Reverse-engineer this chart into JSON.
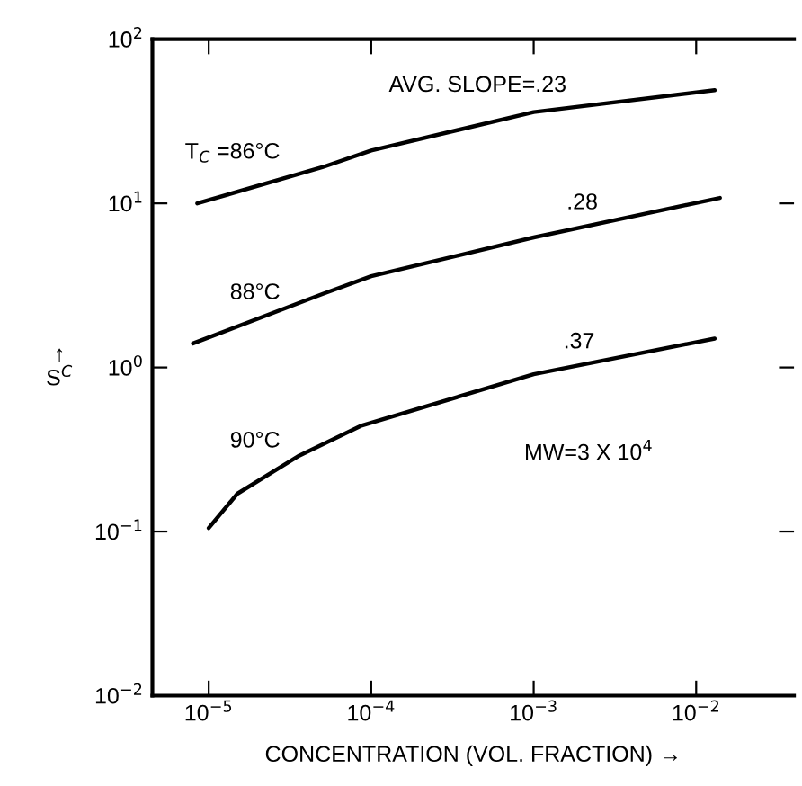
{
  "chart_data": {
    "type": "line",
    "xlabel": "CONCENTRATION (VOL. FRACTION) →",
    "ylabel": "↑\nS$^{C}$",
    "log": "xy",
    "grid": false,
    "marker": "none",
    "line_style": "solid",
    "xlim": [
      4.5e-06,
      0.04
    ],
    "ylim": [
      0.01,
      100
    ],
    "xticks": [
      {
        "value": 1e-05,
        "label": "10$^{−5}$"
      },
      {
        "value": 0.0001,
        "label": "10$^{−4}$"
      },
      {
        "value": 0.001,
        "label": "10$^{−3}$"
      },
      {
        "value": 0.01,
        "label": "10$^{−2}$"
      }
    ],
    "yticks": [
      {
        "value": 0.01,
        "label": "10$^{−2}$"
      },
      {
        "value": 0.1,
        "label": "10$^{−1}$"
      },
      {
        "value": 1,
        "label": "10$^{0}$"
      },
      {
        "value": 10,
        "label": "10$^{1}$"
      },
      {
        "value": 100,
        "label": "10$^{2}$"
      }
    ],
    "series": [
      {
        "color": "#000000",
        "x": [
          8.5e-06,
          5e-05,
          0.0001,
          0.001,
          0.013
        ],
        "values": [
          10,
          16.6,
          21,
          36,
          49
        ]
      },
      {
        "color": "#000000",
        "x": [
          8e-06,
          5e-05,
          0.0001,
          0.001,
          0.014
        ],
        "values": [
          1.4,
          2.8,
          3.6,
          6.2,
          10.8
        ]
      },
      {
        "color": "#000000",
        "x": [
          1e-05,
          1.5e-05,
          3.6e-05,
          8.6e-05,
          0.001,
          0.013
        ],
        "values": [
          0.105,
          0.17,
          0.29,
          0.44,
          0.91,
          1.5
        ]
      }
    ],
    "annotations": [
      "T$_{C}$ =86°C",
      "88°C",
      "90°C",
      "AVG. SLOPE=.23",
      ".28",
      ".37",
      "MW=3 X 10$^{4}$"
    ]
  }
}
